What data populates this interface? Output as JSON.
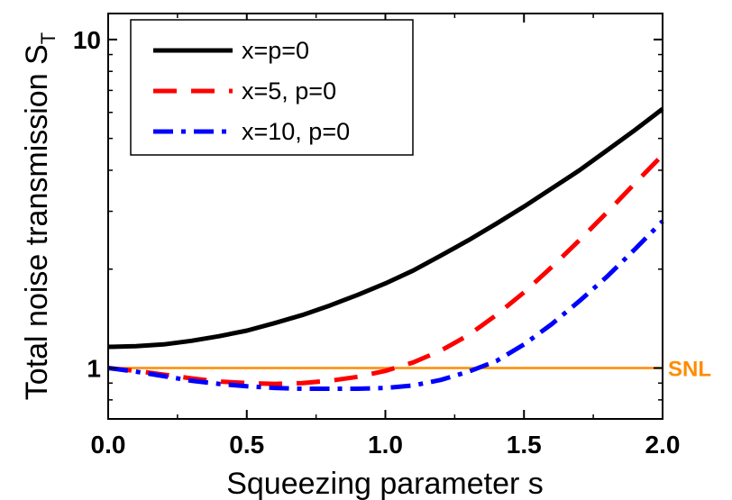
{
  "chart_data": {
    "type": "line",
    "xlabel": "Squeezing parameter s",
    "ylabel": "Total noise transmission S",
    "ylabel_subscript": "T",
    "xlim": [
      0,
      2
    ],
    "ylim": [
      0.7,
      12
    ],
    "yscale": "log",
    "x_ticks": [
      "0.0",
      "0.5",
      "1.0",
      "1.5",
      "2.0"
    ],
    "y_ticks": [
      "1",
      "10"
    ],
    "grid": false,
    "legend_position": "top-left",
    "series": [
      {
        "name": "x=p=0",
        "color": "#000000",
        "style": "solid",
        "x": [
          0,
          0.1,
          0.2,
          0.3,
          0.4,
          0.5,
          0.6,
          0.7,
          0.8,
          0.9,
          1.0,
          1.1,
          1.2,
          1.3,
          1.4,
          1.5,
          1.6,
          1.7,
          1.8,
          1.9,
          2.0
        ],
        "y": [
          1.16,
          1.165,
          1.18,
          1.21,
          1.25,
          1.3,
          1.37,
          1.45,
          1.55,
          1.67,
          1.81,
          1.98,
          2.2,
          2.45,
          2.75,
          3.1,
          3.52,
          4.0,
          4.6,
          5.3,
          6.15
        ]
      },
      {
        "name": "x=5, p=0",
        "color": "#ff0000",
        "style": "dashed",
        "x": [
          0,
          0.1,
          0.2,
          0.3,
          0.4,
          0.5,
          0.6,
          0.7,
          0.8,
          0.9,
          1.0,
          1.1,
          1.2,
          1.3,
          1.4,
          1.5,
          1.6,
          1.7,
          1.8,
          1.9,
          2.0
        ],
        "y": [
          1.0,
          0.98,
          0.955,
          0.93,
          0.91,
          0.9,
          0.895,
          0.9,
          0.915,
          0.94,
          0.98,
          1.04,
          1.13,
          1.26,
          1.45,
          1.7,
          2.03,
          2.45,
          2.98,
          3.65,
          4.45
        ]
      },
      {
        "name": "x=10, p=0",
        "color": "#0000ff",
        "style": "dash-dot",
        "x": [
          0,
          0.1,
          0.2,
          0.3,
          0.4,
          0.5,
          0.6,
          0.7,
          0.8,
          0.9,
          1.0,
          1.1,
          1.2,
          1.3,
          1.4,
          1.5,
          1.6,
          1.7,
          1.8,
          1.9,
          2.0
        ],
        "y": [
          1.0,
          0.975,
          0.945,
          0.915,
          0.895,
          0.88,
          0.87,
          0.865,
          0.865,
          0.865,
          0.87,
          0.885,
          0.92,
          0.975,
          1.05,
          1.18,
          1.36,
          1.6,
          1.9,
          2.3,
          2.8
        ]
      }
    ],
    "reference_line": {
      "label": "SNL",
      "y": 1,
      "color": "#ff8c00"
    }
  }
}
